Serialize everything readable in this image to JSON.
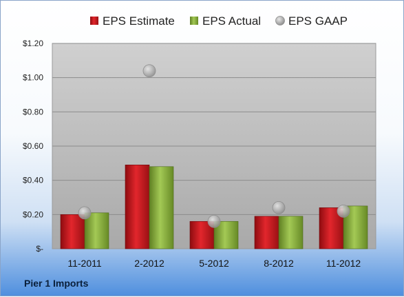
{
  "company": "Pier 1 Imports",
  "chart_data": {
    "type": "bar",
    "categories": [
      "11-2011",
      "2-2012",
      "5-2012",
      "8-2012",
      "11-2012"
    ],
    "series": [
      {
        "name": "EPS Estimate",
        "type": "bar",
        "color": "#c8161d",
        "values": [
          0.2,
          0.49,
          0.16,
          0.19,
          0.24
        ]
      },
      {
        "name": "EPS Actual",
        "type": "bar",
        "color": "#8cb33a",
        "values": [
          0.21,
          0.48,
          0.16,
          0.19,
          0.25
        ]
      },
      {
        "name": "EPS GAAP",
        "type": "scatter",
        "color": "#b0b0b0",
        "values": [
          0.21,
          1.04,
          0.16,
          0.24,
          0.22
        ]
      }
    ],
    "ylim": [
      0,
      1.2
    ],
    "yticks": [
      0,
      0.2,
      0.4,
      0.6,
      0.8,
      1.0,
      1.2
    ],
    "ytick_labels": [
      "$-",
      "$0.20",
      "$0.40",
      "$0.60",
      "$0.80",
      "$1.00",
      "$1.20"
    ],
    "legend_position": "top",
    "grid": true
  }
}
